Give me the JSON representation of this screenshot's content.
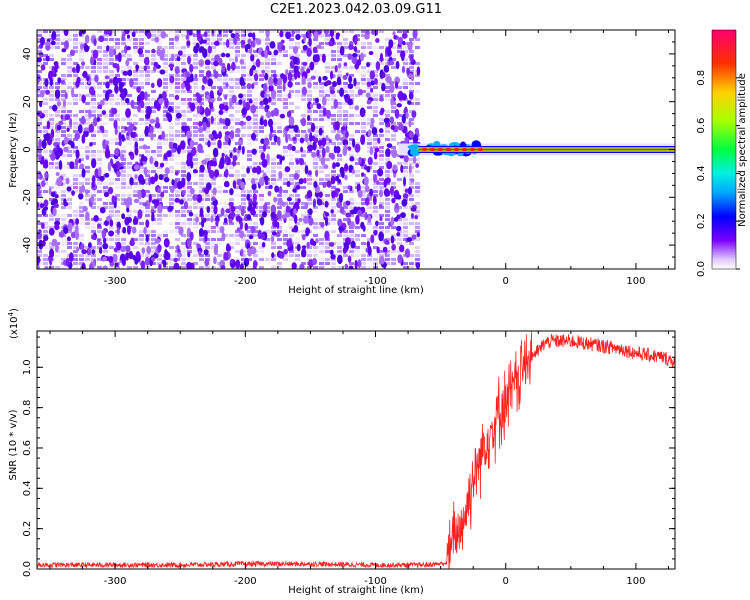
{
  "title": "C2E1.2023.042.03.09.G11",
  "chart_data": [
    {
      "type": "heatmap",
      "xlabel": "Height of straight line (km)",
      "ylabel": "Frequency (Hz)",
      "xlim": [
        -360,
        130
      ],
      "ylim": [
        -50,
        50
      ],
      "xticks": [
        -300,
        -200,
        -100,
        0,
        100
      ],
      "yticks": [
        -40,
        -20,
        0,
        20,
        40
      ],
      "xtick_labels": [
        "-300",
        "-200",
        "-100",
        "0",
        "100"
      ],
      "ytick_labels": [
        "-40",
        "-20",
        "0",
        "20",
        "40"
      ],
      "noise_region_x": [
        -360,
        -67
      ],
      "signal_start_x": -67,
      "signal_frequency": 0,
      "colorbar": {
        "label": "Normalized spectral amplitude",
        "range": [
          0,
          1
        ],
        "ticks": [
          "0.0",
          "0.2",
          "0.4",
          "0.6",
          "0.8"
        ],
        "tick_values": [
          0,
          0.2,
          0.4,
          0.6,
          0.8
        ],
        "colors": [
          "#ffffff",
          "#7a00ff",
          "#0000ff",
          "#00e0ff",
          "#00ff40",
          "#b0ff00",
          "#ffcc00",
          "#ff3000",
          "#ff0070"
        ]
      }
    },
    {
      "type": "line",
      "xlabel": "Height of straight line (km)",
      "ylabel": "SNR (10 * v/v)",
      "y_scale_label": "(x10",
      "y_scale_exponent": "4",
      "y_scale_close": ")",
      "xlim": [
        -360,
        130
      ],
      "ylim": [
        0,
        1.18
      ],
      "xticks": [
        -300,
        -200,
        -100,
        0,
        100
      ],
      "yticks": [
        0.0,
        0.2,
        0.4,
        0.6,
        0.8,
        1.0
      ],
      "xtick_labels": [
        "-300",
        "-200",
        "-100",
        "0",
        "100"
      ],
      "ytick_labels": [
        "0.0",
        "0.2",
        "0.4",
        "0.6",
        "0.8",
        "1.0"
      ],
      "line_color": "#ff2020",
      "series": [
        {
          "name": "SNR",
          "x": [
            -360,
            -300,
            -250,
            -200,
            -150,
            -100,
            -60,
            -45,
            -40,
            -35,
            -30,
            -25,
            -20,
            -15,
            -10,
            -5,
            0,
            5,
            10,
            15,
            20,
            25,
            30,
            35,
            40,
            50,
            60,
            70,
            80,
            90,
            100,
            110,
            120,
            130
          ],
          "values": [
            0.02,
            0.02,
            0.02,
            0.025,
            0.025,
            0.02,
            0.02,
            0.03,
            0.15,
            0.2,
            0.3,
            0.45,
            0.55,
            0.65,
            0.7,
            0.78,
            0.83,
            0.88,
            0.95,
            1.02,
            1.06,
            1.08,
            1.12,
            1.13,
            1.13,
            1.13,
            1.12,
            1.11,
            1.1,
            1.09,
            1.07,
            1.06,
            1.05,
            1.03
          ]
        }
      ]
    }
  ]
}
